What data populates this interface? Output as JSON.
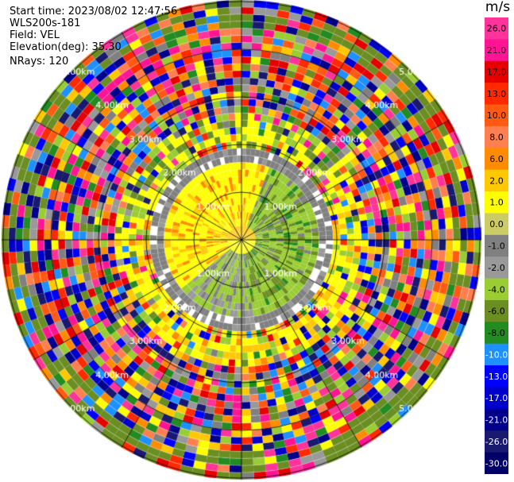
{
  "header": {
    "start_time": "Start time: 2023/08/02 12:47:56",
    "instrument": "WLS200s-181",
    "field": "Field: VEL",
    "elevation": "Elevation(deg): 35.30",
    "nrays": "NRays: 120"
  },
  "range_rings": {
    "labels": [
      "1.00km",
      "2.00km",
      "3.00km",
      "4.00km",
      "5.00km"
    ]
  },
  "colorbar": {
    "unit": "m/s",
    "ticks": [
      "26.0",
      "21.0",
      "17.0",
      "13.0",
      "10.0",
      "8.0",
      "6.0",
      "2.0",
      "1.0",
      "0.0",
      "-1.0",
      "-2.0",
      "-4.0",
      "-6.0",
      "-8.0",
      "-10.0",
      "-13.0",
      "-17.0",
      "-21.0",
      "-26.0",
      "-30.0"
    ],
    "colors": [
      "#ff3399",
      "#ff1493",
      "#e60000",
      "#ff2a00",
      "#ff5a14",
      "#ff7f50",
      "#ff8c00",
      "#ffc800",
      "#ffff00",
      "#cccc66",
      "#808080",
      "#999999",
      "#9acd32",
      "#6b8e23",
      "#228b22",
      "#1e90ff",
      "#0000ff",
      "#0000cd",
      "#00008b",
      "#191970",
      "#000066"
    ]
  },
  "colors": {
    "background": "#ffffff",
    "grid": "#000000",
    "tick_text": "#000000"
  }
}
